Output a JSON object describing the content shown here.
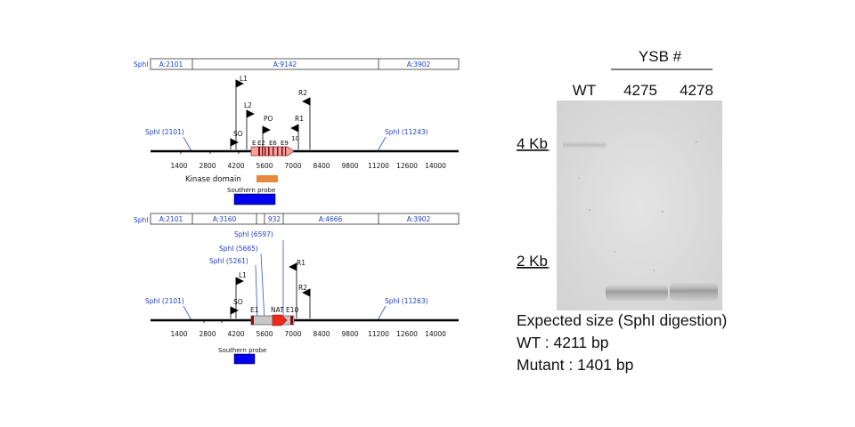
{
  "maps": [
    {
      "name": "wild-type",
      "segments": [
        {
          "label": "A:2101"
        },
        {
          "label": "A:9142"
        },
        {
          "label": "A:3902"
        }
      ],
      "site_label": "SphI",
      "left_site": "SphI (2101)",
      "right_site": "SphI (11243)",
      "primers": [
        "L1",
        "L2",
        "PO",
        "R2",
        "R1",
        "SO"
      ],
      "exons": [
        "E",
        "E2",
        "E6",
        "E9",
        "10"
      ],
      "ticks": [
        "1400",
        "2800",
        "4200",
        "5600",
        "7000",
        "8400",
        "9800",
        "11200",
        "12600",
        "14000"
      ],
      "kinase_label": "Kinase domain",
      "probe_label": "Southern probe",
      "colors": {
        "kinase": "#E8883A",
        "probe": "#0000EE",
        "gene": "#F4A0A0"
      }
    },
    {
      "name": "mutant",
      "segments": [
        {
          "label": "A:2101"
        },
        {
          "label": "A:3160"
        },
        {
          "label": ""
        },
        {
          "label": "932"
        },
        {
          "label": "A:4666"
        },
        {
          "label": "A:3902"
        }
      ],
      "site_label": "SphI",
      "left_site": "SphI (2101)",
      "right_site": "SphI (11263)",
      "sites": [
        "SphI (6597)",
        "SphI (5665)",
        "SphI (5261)"
      ],
      "primers": [
        "L1",
        "SO",
        "R1",
        "R2"
      ],
      "labels": [
        "E1",
        "NAT",
        "E10"
      ],
      "ticks": [
        "1400",
        "2800",
        "4200",
        "5600",
        "7000",
        "8400",
        "9800",
        "11200",
        "12600",
        "14000"
      ],
      "probe_label": "Southern probe",
      "colors": {
        "nat": "#EE2A1A",
        "probe": "#0000EE",
        "gene": "#C8C8C8"
      }
    }
  ],
  "gel": {
    "group_label": "YSB #",
    "lanes": [
      "WT",
      "4275",
      "4278"
    ],
    "markers": [
      "4 Kb",
      "2 Kb"
    ]
  },
  "summary": {
    "title": "Expected size (SphI digestion)",
    "wt": "WT : 4211 bp",
    "mutant": "Mutant : 1401 bp"
  }
}
